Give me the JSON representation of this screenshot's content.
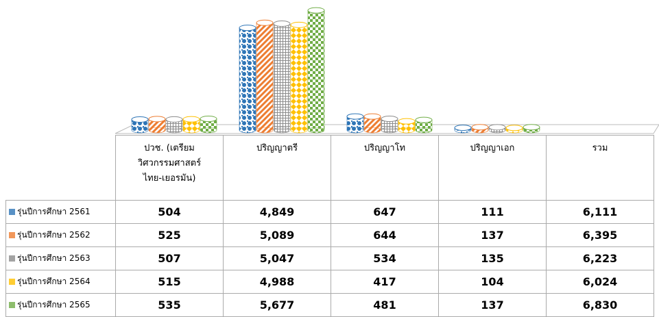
{
  "chart_data": {
    "type": "bar",
    "categories": [
      "ปวช. (เตรียม\nวิศวกรรมศาสตร์\nไทย-เยอรมัน)",
      "ปริญญาตรี",
      "ปริญญาโท",
      "ปริญญาเอก",
      "รวม"
    ],
    "series": [
      {
        "name": "รุ่นปีการศึกษา 2561",
        "color": "#2e75b6",
        "values": [
          504,
          4849,
          647,
          111,
          6111
        ],
        "value_labels": [
          "504",
          "4,849",
          "647",
          "111",
          "6,111"
        ]
      },
      {
        "name": "รุ่นปีการศึกษา 2562",
        "color": "#ed7d31",
        "values": [
          525,
          5089,
          644,
          137,
          6395
        ],
        "value_labels": [
          "525",
          "5,089",
          "644",
          "137",
          "6,395"
        ]
      },
      {
        "name": "รุ่นปีการศึกษา 2563",
        "color": "#8c8c8c",
        "values": [
          507,
          5047,
          534,
          135,
          6223
        ],
        "value_labels": [
          "507",
          "5,047",
          "534",
          "135",
          "6,223"
        ]
      },
      {
        "name": "รุ่นปีการศึกษา 2564",
        "color": "#ffc000",
        "values": [
          515,
          4988,
          417,
          104,
          6024
        ],
        "value_labels": [
          "515",
          "4,988",
          "417",
          "104",
          "6,024"
        ]
      },
      {
        "name": "รุ่นปีการศึกษา 2565",
        "color": "#70ad47",
        "values": [
          535,
          5677,
          481,
          137,
          6830
        ],
        "value_labels": [
          "535",
          "5,677",
          "481",
          "137",
          "6,830"
        ]
      }
    ]
  }
}
